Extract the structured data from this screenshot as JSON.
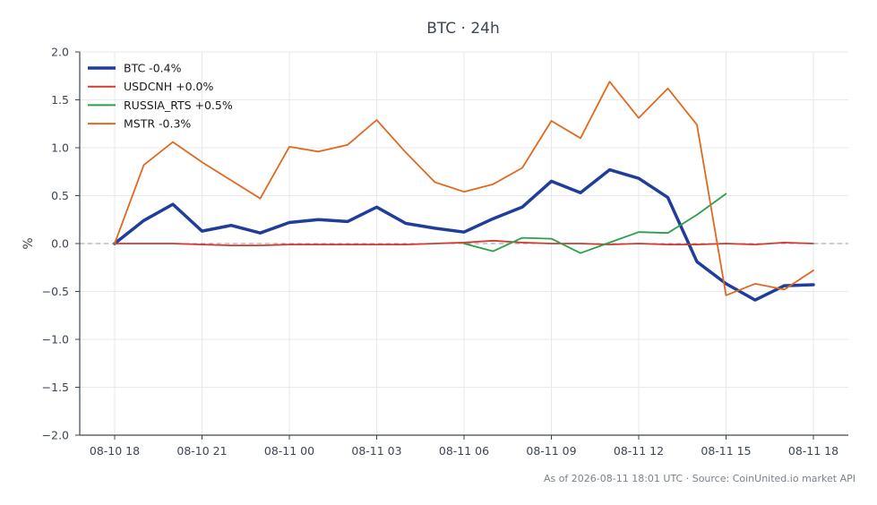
{
  "chart_data": {
    "type": "line",
    "title": "BTC · 24h",
    "ylabel": "%",
    "xlabel": "",
    "ylim": [
      -2.0,
      2.0
    ],
    "y_ticks": [
      2.0,
      1.5,
      1.0,
      0.5,
      0.0,
      -0.5,
      -1.0,
      -1.5,
      -2.0
    ],
    "y_tick_labels": [
      "2.0",
      "1.5",
      "1.0",
      "0.5",
      "0.0",
      "−0.5",
      "−1.0",
      "−1.5",
      "−2.0"
    ],
    "x_tick_labels": [
      "08-10 18",
      "08-10 21",
      "08-11 00",
      "08-11 03",
      "08-11 06",
      "08-11 09",
      "08-11 12",
      "08-11 15",
      "08-11 18"
    ],
    "x_tick_hours": [
      0,
      3,
      6,
      9,
      12,
      15,
      18,
      21,
      24
    ],
    "x_range_hours": [
      -1.2,
      25.2
    ],
    "grid": true,
    "zero_line": true,
    "legend_position": "top-left",
    "series": [
      {
        "name": "BTC -0.4%",
        "color": "#1f3d99",
        "weight": "bold",
        "x": [
          0,
          1,
          2,
          3,
          4,
          5,
          6,
          7,
          8,
          9,
          10,
          11,
          12,
          13,
          14,
          15,
          16,
          17,
          18,
          19,
          20,
          21,
          22,
          23,
          24
        ],
        "values": [
          0.0,
          0.24,
          0.41,
          0.13,
          0.19,
          0.11,
          0.22,
          0.25,
          0.23,
          0.38,
          0.21,
          0.16,
          0.12,
          0.26,
          0.38,
          0.65,
          0.53,
          0.77,
          0.68,
          0.48,
          -0.19,
          -0.42,
          -0.59,
          -0.44,
          -0.43
        ]
      },
      {
        "name": "USDCNH +0.0%",
        "color": "#d33a2c",
        "weight": "normal",
        "x": [
          0,
          1,
          2,
          3,
          4,
          5,
          6,
          7,
          8,
          9,
          10,
          11,
          12,
          13,
          14,
          15,
          16,
          17,
          18,
          19,
          20,
          21,
          22,
          23,
          24
        ],
        "values": [
          0.0,
          0.0,
          0.0,
          -0.01,
          -0.02,
          -0.02,
          -0.01,
          -0.01,
          -0.01,
          -0.01,
          -0.01,
          0.0,
          0.01,
          0.03,
          0.01,
          0.0,
          0.0,
          -0.01,
          0.0,
          -0.01,
          -0.01,
          0.0,
          -0.01,
          0.01,
          0.0
        ]
      },
      {
        "name": "RUSSIA_RTS +0.5%",
        "color": "#2ca049",
        "weight": "normal",
        "x": [
          12,
          13,
          14,
          15,
          16,
          17,
          18,
          19,
          20,
          21
        ],
        "values": [
          0.0,
          -0.08,
          0.06,
          0.05,
          -0.1,
          0.01,
          0.12,
          0.11,
          0.3,
          0.52
        ]
      },
      {
        "name": "MSTR -0.3%",
        "color": "#e0691f",
        "weight": "normal",
        "x": [
          0,
          1,
          2,
          3,
          4,
          5,
          6,
          7,
          8,
          9,
          10,
          11,
          12,
          13,
          14,
          15,
          16,
          17,
          18,
          19,
          20,
          21,
          22,
          23,
          24
        ],
        "values": [
          0.0,
          0.82,
          1.06,
          0.85,
          0.66,
          0.47,
          1.01,
          0.96,
          1.03,
          1.29,
          0.95,
          0.64,
          0.54,
          0.62,
          0.79,
          1.28,
          1.1,
          1.69,
          1.31,
          1.62,
          1.24,
          -0.54,
          -0.42,
          -0.48,
          -0.28
        ]
      }
    ]
  },
  "footer": "As of 2026-08-11 18:01 UTC · Source: CoinUnited.io market API"
}
